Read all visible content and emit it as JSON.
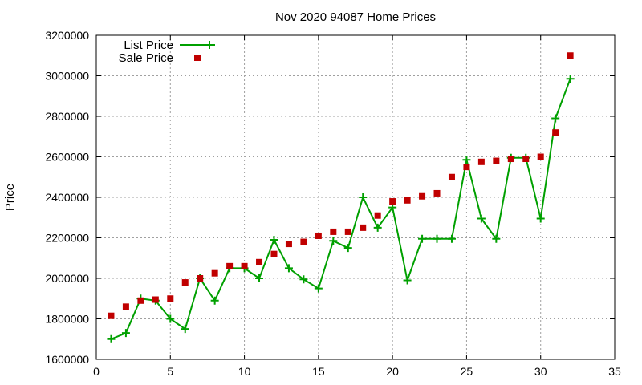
{
  "chart_data": {
    "type": "line",
    "title": "Nov 2020 94087 Home Prices",
    "xlabel": "",
    "ylabel": "Price",
    "xlim": [
      0,
      35
    ],
    "ylim": [
      1600000,
      3200000
    ],
    "xticks": [
      0,
      5,
      10,
      15,
      20,
      25,
      30,
      35
    ],
    "yticks": [
      1600000,
      1800000,
      2000000,
      2200000,
      2400000,
      2600000,
      2800000,
      3000000,
      3200000
    ],
    "grid": true,
    "legend_position": "top-left",
    "series": [
      {
        "name": "List Price",
        "style": "line-plus",
        "color": "#00a000",
        "x": [
          1,
          2,
          3,
          4,
          5,
          6,
          7,
          8,
          9,
          10,
          11,
          12,
          13,
          14,
          15,
          16,
          17,
          18,
          19,
          20,
          21,
          22,
          23,
          24,
          25,
          26,
          27,
          28,
          29,
          30,
          31,
          32
        ],
        "y": [
          1700000,
          1730000,
          1900000,
          1890000,
          1800000,
          1750000,
          2000000,
          1890000,
          2050000,
          2050000,
          2000000,
          2190000,
          2050000,
          1995000,
          1950000,
          2185000,
          2150000,
          2400000,
          2250000,
          2350000,
          1990000,
          2195000,
          2195000,
          2195000,
          2585000,
          2295000,
          2195000,
          2595000,
          2595000,
          2295000,
          2790000,
          2985000
        ]
      },
      {
        "name": "Sale Price",
        "style": "square-markers",
        "color": "#c00000",
        "x": [
          1,
          2,
          3,
          4,
          5,
          6,
          7,
          8,
          9,
          10,
          11,
          12,
          13,
          14,
          15,
          16,
          17,
          18,
          19,
          20,
          21,
          22,
          23,
          24,
          25,
          26,
          27,
          28,
          29,
          30,
          31,
          32
        ],
        "y": [
          1815000,
          1860000,
          1890000,
          1895000,
          1900000,
          1980000,
          2000000,
          2025000,
          2060000,
          2060000,
          2080000,
          2120000,
          2170000,
          2180000,
          2210000,
          2230000,
          2230000,
          2250000,
          2310000,
          2380000,
          2385000,
          2405000,
          2420000,
          2500000,
          2550000,
          2575000,
          2580000,
          2590000,
          2590000,
          2600000,
          2720000,
          3100000
        ]
      }
    ]
  }
}
